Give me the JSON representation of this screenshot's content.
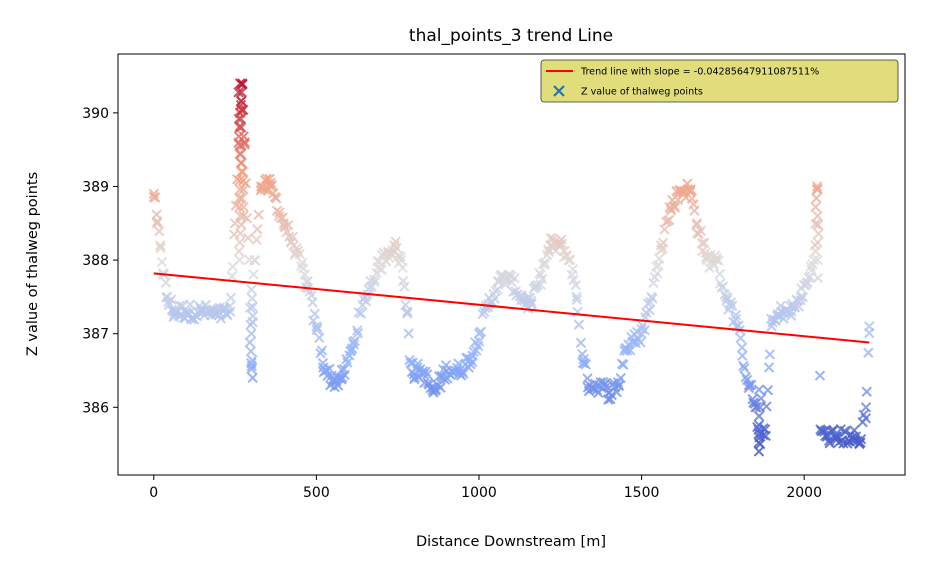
{
  "chart_data": {
    "type": "scatter",
    "title": "thal_points_3 trend Line",
    "xlabel": "Distance Downstream [m]",
    "ylabel": "Z value of thalweg points",
    "xlim": [
      -110,
      2310
    ],
    "ylim": [
      385.08,
      390.8
    ],
    "xticks": [
      0,
      500,
      1000,
      1500,
      2000
    ],
    "yticks": [
      386,
      387,
      388,
      389,
      390
    ],
    "grid": false,
    "legend_position": "top-right",
    "colormap": "coolwarm",
    "colormap_stops": [
      "#3b4cc0",
      "#8db0fe",
      "#dddcdc",
      "#f49a7b",
      "#b40426"
    ],
    "legend": {
      "trend_label": "Trend line with slope = -0.04285647911087511%",
      "points_label": "Z value of thalweg points",
      "trend_color": "#ff0000",
      "points_color": "#1f77b4",
      "background": "#e0dd7a"
    },
    "series": [
      {
        "name": "Trend line with slope = -0.04285647911087511%",
        "kind": "line",
        "color": "#ff0000",
        "x": [
          0,
          2200
        ],
        "y": [
          387.82,
          386.88
        ]
      },
      {
        "name": "Z value of thalweg points",
        "kind": "scatter",
        "marker": "x",
        "profile_x": [
          0,
          10,
          20,
          30,
          40,
          60,
          100,
          150,
          200,
          235,
          250,
          265,
          272,
          280,
          290,
          300,
          310,
          330,
          360,
          400,
          430,
          470,
          500,
          520,
          550,
          580,
          610,
          650,
          690,
          720,
          740,
          760,
          780,
          790,
          800,
          815,
          830,
          860,
          900,
          940,
          980,
          1000,
          1030,
          1060,
          1080,
          1100,
          1130,
          1160,
          1190,
          1220,
          1250,
          1280,
          1300,
          1320,
          1340,
          1370,
          1400,
          1430,
          1450,
          1480,
          1500,
          1530,
          1560,
          1590,
          1620,
          1650,
          1670,
          1700,
          1730,
          1760,
          1790,
          1810,
          1830,
          1850,
          1865,
          1880,
          1900,
          1930,
          1960,
          1990,
          2010,
          2030,
          2040,
          2050,
          2070,
          2100,
          2150,
          2170,
          2190,
          2200
        ],
        "profile_y": [
          388.9,
          388.5,
          388.2,
          387.8,
          387.5,
          387.3,
          387.3,
          387.3,
          387.25,
          387.3,
          388.5,
          390.0,
          390.4,
          389.6,
          388.3,
          386.6,
          388.0,
          389.0,
          389.0,
          388.5,
          388.2,
          387.7,
          387.1,
          386.6,
          386.35,
          386.4,
          386.8,
          387.5,
          387.9,
          388.1,
          388.2,
          388.0,
          387.3,
          386.6,
          386.45,
          386.5,
          386.45,
          386.2,
          386.5,
          386.5,
          386.7,
          387.0,
          387.4,
          387.7,
          387.75,
          387.7,
          387.5,
          387.4,
          387.8,
          388.2,
          388.2,
          388.0,
          387.5,
          386.6,
          386.3,
          386.3,
          386.2,
          386.3,
          386.8,
          386.9,
          387.0,
          387.5,
          388.2,
          388.7,
          388.95,
          388.95,
          388.5,
          388.0,
          388.0,
          387.5,
          387.2,
          386.7,
          386.3,
          386.0,
          385.5,
          385.7,
          387.1,
          387.3,
          387.3,
          387.5,
          387.7,
          388.0,
          389.0,
          385.7,
          385.6,
          385.6,
          385.6,
          385.5,
          386.0,
          387.1
        ]
      }
    ]
  }
}
